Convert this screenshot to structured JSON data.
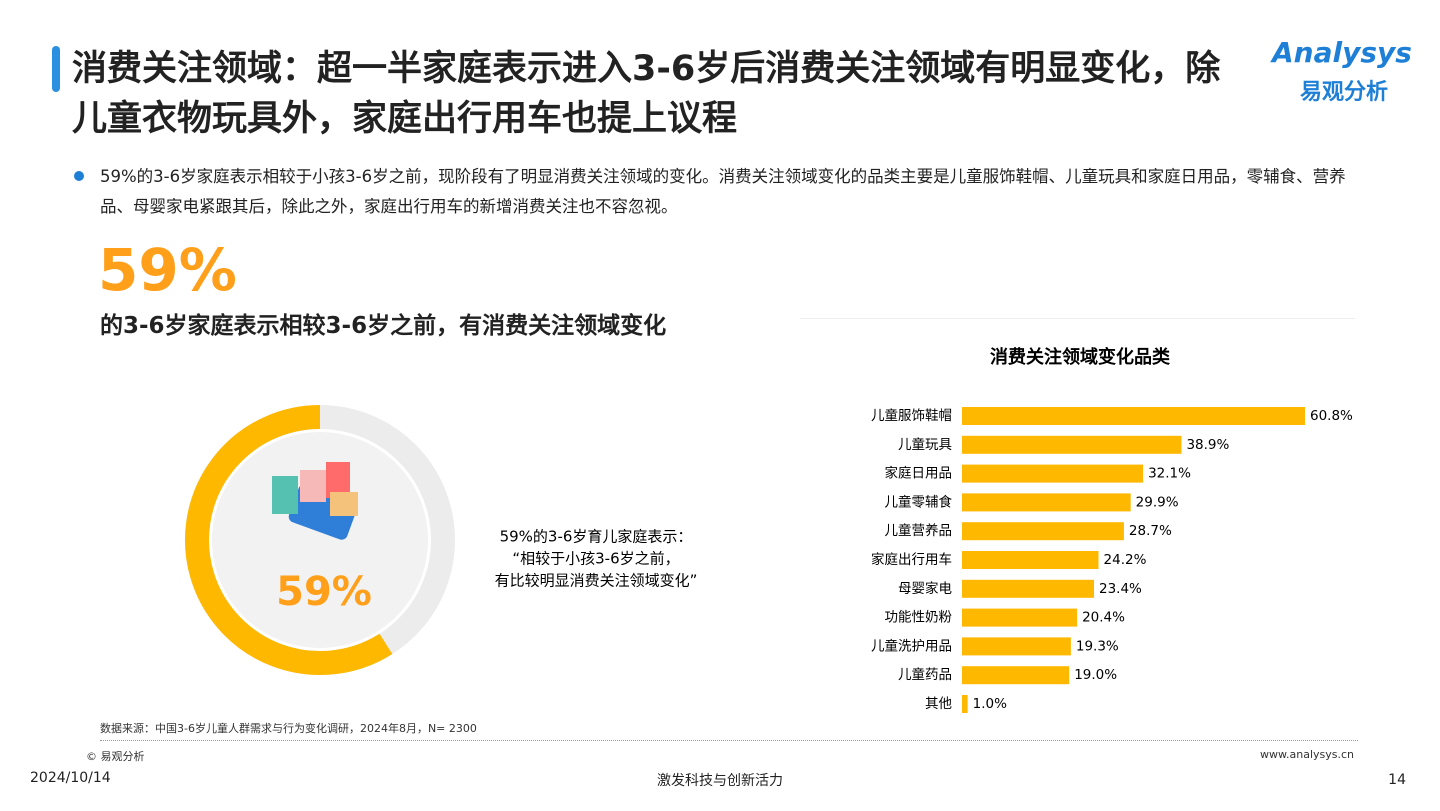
{
  "header": {
    "title": "消费关注领域：超一半家庭表示进入3-6岁后消费关注领域有明显变化，除儿童衣物玩具外，家庭出行用车也提上议程",
    "logo_en": "Analysys",
    "logo_cn": "易观分析"
  },
  "bullet": "59%的3-6岁家庭表示相较于小孩3-6岁之前，现阶段有了明显消费关注领域的变化。消费关注领域变化的品类主要是儿童服饰鞋帽、儿童玩具和家庭日用品，零辅食、营养品、母婴家电紧跟其后，除此之外，家庭出行用车的新增消费关注也不容忽视。",
  "highlight": {
    "number": "59%",
    "text": "的3-6岁家庭表示相较3-6岁之前，有消费关注领域变化"
  },
  "chart_data": [
    {
      "type": "donut",
      "values": [
        59
      ],
      "value_labels": [
        "59%"
      ],
      "color": "#ffb800",
      "annotation": [
        "59%的3-6岁育儿家庭表示：",
        "“相较于小孩3-6岁之前，",
        "有比较明显消费关注领域变化”"
      ]
    },
    {
      "type": "hbar",
      "title": "消费关注领域变化品类",
      "categories": [
        "儿童服饰鞋帽",
        "儿童玩具",
        "家庭日用品",
        "儿童零辅食",
        "儿童营养品",
        "家庭出行用车",
        "母婴家电",
        "功能性奶粉",
        "儿童洗护用品",
        "儿童药品",
        "其他"
      ],
      "values": [
        60.8,
        38.9,
        32.1,
        29.9,
        28.7,
        24.2,
        23.4,
        20.4,
        19.3,
        19.0,
        1.0
      ],
      "value_labels": [
        "60.8%",
        "38.9%",
        "32.1%",
        "29.9%",
        "28.7%",
        "24.2%",
        "23.4%",
        "20.4%",
        "19.3%",
        "19.0%",
        "1.0%"
      ],
      "color": "#ffb800"
    }
  ],
  "footer": {
    "source": "数据来源：中国3-6岁儿童人群需求与行为变化调研，2024年8月，N= 2300",
    "copyright": "© 易观分析",
    "website": "www.analysys.cn",
    "date": "2024/10/14",
    "slogan": "激发科技与创新活力",
    "page": "14"
  }
}
